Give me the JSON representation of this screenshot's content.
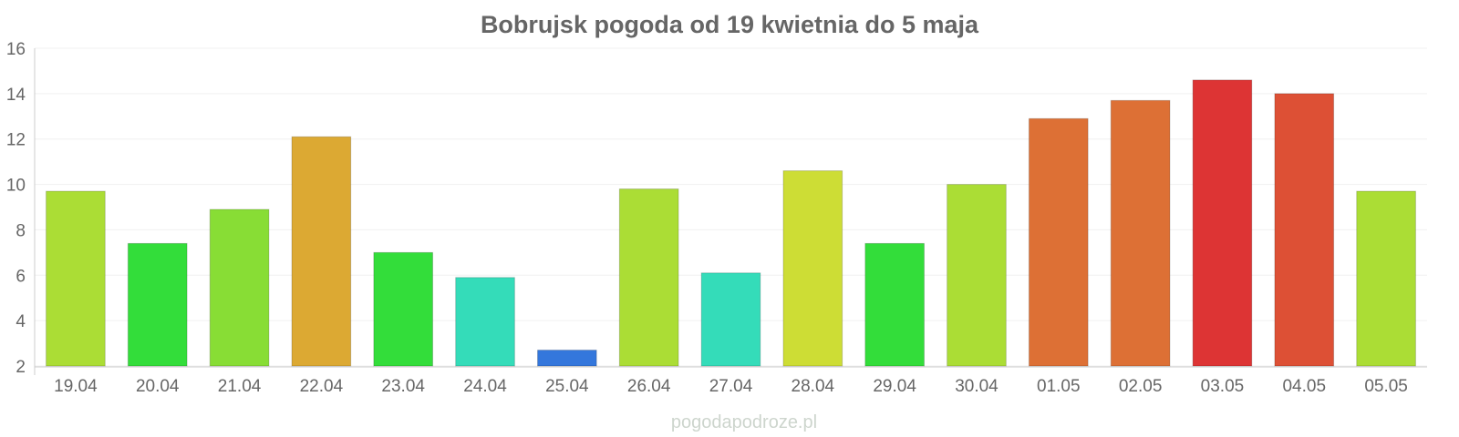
{
  "chart_data": {
    "type": "bar",
    "title": "Bobrujsk pogoda od 19 kwietnia do 5 maja",
    "xlabel": "",
    "ylabel": "",
    "ylim": [
      2,
      16
    ],
    "yticks": [
      2,
      4,
      6,
      8,
      10,
      12,
      14,
      16
    ],
    "grid": true,
    "legend": "none",
    "categories": [
      "19.04",
      "20.04",
      "21.04",
      "22.04",
      "23.04",
      "24.04",
      "25.04",
      "26.04",
      "27.04",
      "28.04",
      "29.04",
      "30.04",
      "01.05",
      "02.05",
      "03.05",
      "04.05",
      "05.05"
    ],
    "values": [
      9.7,
      7.4,
      8.9,
      12.1,
      7.0,
      5.9,
      2.7,
      9.8,
      6.1,
      10.6,
      7.4,
      10.0,
      12.9,
      13.7,
      14.6,
      14.0,
      9.7
    ],
    "colors": [
      "#abdd35",
      "#33dd3a",
      "#88dd35",
      "#dca933",
      "#33dd3a",
      "#34dcb9",
      "#3477dc",
      "#abdd35",
      "#34dcb9",
      "#cddd35",
      "#33dd3a",
      "#abdd35",
      "#dd7035",
      "#dd7035",
      "#dd3434",
      "#dd5035",
      "#abdd35"
    ]
  },
  "watermark": "pogodapodroze.pl"
}
